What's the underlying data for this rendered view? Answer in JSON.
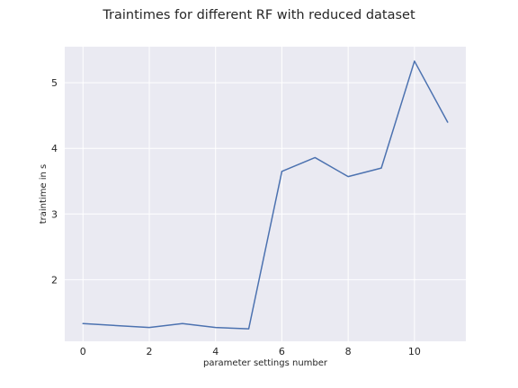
{
  "chart_data": {
    "type": "line",
    "title": "Traintimes for different RF with reduced dataset",
    "xlabel": "parameter settings number",
    "ylabel": "traintime in s",
    "xlim": [
      -0.55,
      11.55
    ],
    "ylim": [
      1.06,
      5.55
    ],
    "xticks": [
      0,
      2,
      4,
      6,
      8,
      10
    ],
    "yticks": [
      2,
      3,
      4,
      5
    ],
    "grid": true,
    "background_color": "#EAEAF2",
    "grid_color": "#FFFFFF",
    "line_color": "#4C72B0",
    "series": [
      {
        "x": [
          0,
          1,
          2,
          3,
          4,
          5,
          6,
          7,
          8,
          9,
          10,
          11
        ],
        "values": [
          1.33,
          1.3,
          1.27,
          1.33,
          1.27,
          1.25,
          3.65,
          3.86,
          3.57,
          3.7,
          5.33,
          4.4
        ]
      }
    ]
  }
}
